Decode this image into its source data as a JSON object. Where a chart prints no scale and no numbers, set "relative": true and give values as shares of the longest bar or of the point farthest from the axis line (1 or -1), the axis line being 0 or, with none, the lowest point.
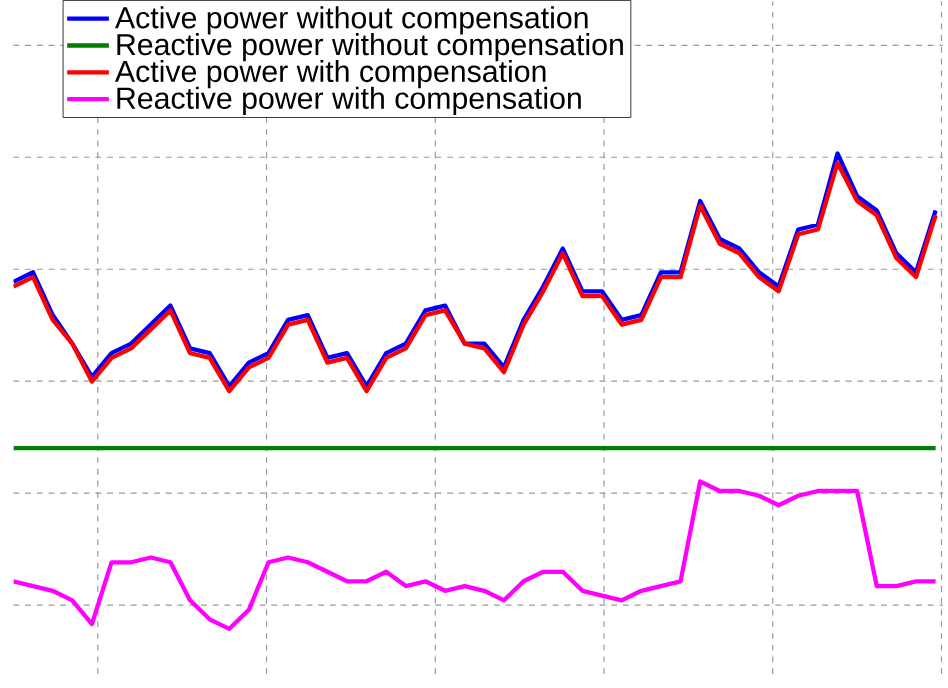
{
  "chart_data": {
    "type": "line",
    "relative": true,
    "grid": true,
    "legend": "top left",
    "marker": "none",
    "line_style": "solid",
    "categories": [
      null,
      null,
      null,
      null,
      null,
      null,
      null,
      null,
      null,
      null,
      null,
      null,
      null,
      null,
      null,
      null,
      null,
      null,
      null,
      null,
      null,
      null,
      null,
      null,
      null,
      null,
      null,
      null,
      null,
      null,
      null,
      null,
      null,
      null,
      null,
      null,
      null,
      null,
      null,
      null,
      null,
      null,
      null,
      null,
      null,
      null,
      null,
      null
    ],
    "series": [
      {
        "name": "Active power without compensation",
        "color": "#0000ff",
        "values": [
          0.73,
          0.75,
          0.66,
          0.6,
          0.53,
          0.58,
          0.6,
          0.64,
          0.68,
          0.59,
          0.58,
          0.51,
          0.56,
          0.58,
          0.65,
          0.66,
          0.57,
          0.58,
          0.51,
          0.58,
          0.6,
          0.67,
          0.68,
          0.6,
          0.6,
          0.55,
          0.65,
          0.72,
          0.8,
          0.71,
          0.71,
          0.65,
          0.66,
          0.75,
          0.75,
          0.9,
          0.82,
          0.8,
          0.75,
          0.72,
          0.84,
          0.85,
          1.0,
          0.91,
          0.88,
          0.79,
          0.75,
          0.88
        ]
      },
      {
        "name": "Reactive power without compensation",
        "color": "#007f00",
        "values": [
          0.38,
          0.38,
          0.38,
          0.38,
          0.38,
          0.38,
          0.38,
          0.38,
          0.38,
          0.38,
          0.38,
          0.38,
          0.38,
          0.38,
          0.38,
          0.38,
          0.38,
          0.38,
          0.38,
          0.38,
          0.38,
          0.38,
          0.38,
          0.38,
          0.38,
          0.38,
          0.38,
          0.38,
          0.38,
          0.38,
          0.38,
          0.38,
          0.38,
          0.38,
          0.38,
          0.38,
          0.38,
          0.38,
          0.38,
          0.38,
          0.38,
          0.38,
          0.38,
          0.38,
          0.38,
          0.38,
          0.38,
          0.38
        ]
      },
      {
        "name": "Active power with compensation",
        "color": "#ff0000",
        "values": [
          0.72,
          0.74,
          0.65,
          0.6,
          0.52,
          0.57,
          0.59,
          0.63,
          0.67,
          0.58,
          0.57,
          0.5,
          0.55,
          0.57,
          0.64,
          0.65,
          0.56,
          0.57,
          0.5,
          0.57,
          0.59,
          0.66,
          0.67,
          0.6,
          0.59,
          0.54,
          0.64,
          0.71,
          0.79,
          0.7,
          0.7,
          0.64,
          0.65,
          0.74,
          0.74,
          0.89,
          0.81,
          0.79,
          0.74,
          0.71,
          0.83,
          0.84,
          0.98,
          0.9,
          0.87,
          0.78,
          0.74,
          0.87
        ]
      },
      {
        "name": "Reactive power with compensation",
        "color": "#ff00ff",
        "values": [
          0.1,
          0.09,
          0.08,
          0.06,
          0.01,
          0.14,
          0.14,
          0.15,
          0.14,
          0.06,
          0.02,
          0.0,
          0.04,
          0.14,
          0.15,
          0.14,
          0.12,
          0.1,
          0.1,
          0.12,
          0.09,
          0.1,
          0.08,
          0.09,
          0.08,
          0.06,
          0.1,
          0.12,
          0.12,
          0.08,
          0.07,
          0.06,
          0.08,
          0.09,
          0.1,
          0.31,
          0.29,
          0.29,
          0.28,
          0.26,
          0.28,
          0.29,
          0.29,
          0.29,
          0.09,
          0.09,
          0.1,
          0.1
        ]
      }
    ]
  }
}
